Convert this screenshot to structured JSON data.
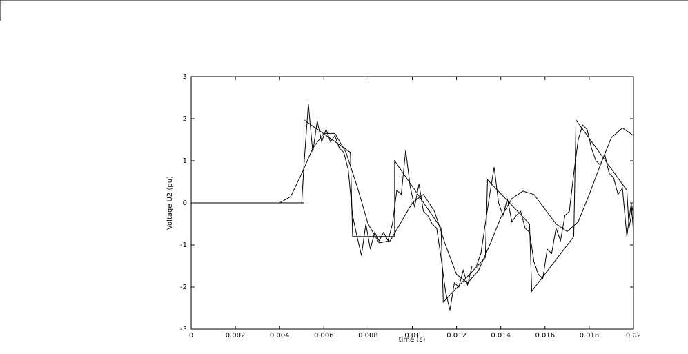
{
  "chart_data": {
    "type": "line",
    "xlabel": "time (s)",
    "ylabel": "Voltage U2 (pu)",
    "xlim": [
      0,
      0.02
    ],
    "ylim": [
      -3,
      3
    ],
    "xticks": [
      0,
      0.002,
      0.004,
      0.006,
      0.008,
      0.01,
      0.012,
      0.014,
      0.016,
      0.018,
      0.02
    ],
    "yticks": [
      -3,
      -2,
      -1,
      0,
      1,
      2,
      3
    ],
    "series": [
      {
        "color": "#000000",
        "x": [
          0,
          0.0051,
          0.0051,
          0.0072,
          0.0073,
          0.0092,
          0.0092,
          0.0113,
          0.0114,
          0.0133,
          0.0134,
          0.0153,
          0.0154,
          0.0173,
          0.0174,
          0.0197,
          0.0198,
          0.02
        ],
        "values": [
          0,
          0,
          1.97,
          1.2,
          -0.8,
          -0.8,
          1.0,
          -0.6,
          -2.36,
          -1.3,
          0.55,
          -0.5,
          -2.1,
          -0.8,
          1.97,
          0.3,
          -0.6,
          0.0
        ]
      },
      {
        "color": "#000000",
        "x": [
          0,
          0.0005,
          0.001,
          0.0015,
          0.002,
          0.0025,
          0.003,
          0.0035,
          0.004,
          0.0045,
          0.005,
          0.0055,
          0.006,
          0.0065,
          0.007,
          0.0075,
          0.008,
          0.0085,
          0.009,
          0.0095,
          0.01,
          0.0105,
          0.011,
          0.0115,
          0.012,
          0.0125,
          0.013,
          0.0135,
          0.014,
          0.0145,
          0.015,
          0.0155,
          0.016,
          0.0165,
          0.017,
          0.0175,
          0.018,
          0.0185,
          0.019,
          0.0195,
          0.02
        ],
        "values": [
          0,
          0,
          0,
          0,
          0,
          0,
          0,
          0,
          0,
          0.15,
          0.7,
          1.3,
          1.65,
          1.65,
          1.2,
          0.4,
          -0.5,
          -0.95,
          -0.9,
          -0.45,
          0.0,
          0.2,
          -0.2,
          -1.0,
          -1.7,
          -1.9,
          -1.6,
          -1.0,
          -0.35,
          0.1,
          0.28,
          0.2,
          -0.15,
          -0.5,
          -0.68,
          -0.45,
          0.2,
          0.9,
          1.55,
          1.78,
          1.6
        ]
      },
      {
        "color": "#000000",
        "x": [
          0,
          0.005,
          0.0051,
          0.0053,
          0.0055,
          0.0057,
          0.0059,
          0.0061,
          0.0063,
          0.0065,
          0.0067,
          0.0069,
          0.0071,
          0.0073,
          0.0075,
          0.0077,
          0.0079,
          0.0081,
          0.0083,
          0.0085,
          0.0087,
          0.0089,
          0.0091,
          0.0093,
          0.0095,
          0.0097,
          0.0099,
          0.0101,
          0.0103,
          0.0105,
          0.0107,
          0.0109,
          0.0111,
          0.0113,
          0.0115,
          0.0117,
          0.0119,
          0.0121,
          0.0123,
          0.0125,
          0.0127,
          0.0129,
          0.0131,
          0.0133,
          0.0135,
          0.0137,
          0.0139,
          0.0141,
          0.0143,
          0.0145,
          0.0147,
          0.0149,
          0.0151,
          0.0153,
          0.0155,
          0.0157,
          0.0159,
          0.0161,
          0.0163,
          0.0165,
          0.0167,
          0.0169,
          0.0171,
          0.0173,
          0.0175,
          0.0177,
          0.0179,
          0.0181,
          0.0183,
          0.0185,
          0.0187,
          0.0189,
          0.0191,
          0.0193,
          0.0195,
          0.0197,
          0.0199,
          0.02
        ],
        "values": [
          0,
          0,
          0.9,
          2.35,
          1.2,
          1.95,
          1.45,
          1.75,
          1.45,
          1.6,
          1.3,
          1.2,
          0.8,
          -0.3,
          -0.8,
          -1.25,
          -0.5,
          -1.1,
          -0.7,
          -0.9,
          -0.7,
          -0.9,
          -0.5,
          0.3,
          0.2,
          1.25,
          0.4,
          -0.1,
          0.45,
          -0.2,
          -0.3,
          -0.5,
          -0.6,
          -1.3,
          -2.1,
          -2.55,
          -1.9,
          -2.0,
          -1.6,
          -1.95,
          -1.5,
          -1.5,
          -1.2,
          -0.5,
          0.2,
          0.85,
          0.0,
          -0.3,
          0.1,
          -0.45,
          -0.3,
          -0.2,
          -0.6,
          -0.7,
          -1.4,
          -1.7,
          -1.8,
          -1.1,
          -1.2,
          -0.6,
          -0.9,
          -0.3,
          -0.2,
          0.7,
          1.5,
          1.85,
          1.75,
          1.3,
          1.0,
          0.9,
          1.15,
          0.7,
          0.6,
          0.2,
          0.35,
          -0.8,
          0.0,
          -0.7
        ]
      }
    ]
  }
}
